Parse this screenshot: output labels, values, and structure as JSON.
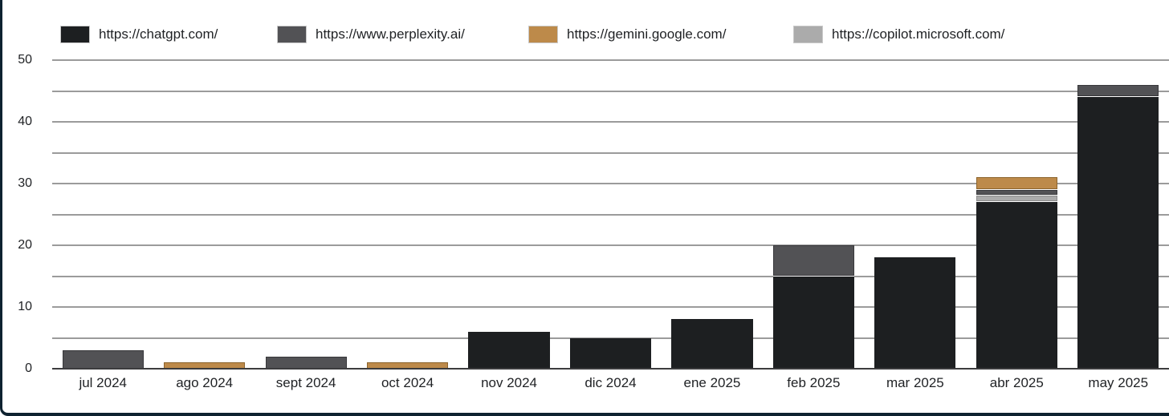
{
  "frame": {
    "border_color": "#0e2230"
  },
  "axis": {
    "grid_color": "#9b9b9b",
    "baseline_color": "#3c3c3e",
    "text_color": "#1f2124"
  },
  "chart_data": {
    "type": "bar",
    "stacked": true,
    "title": "",
    "xlabel": "",
    "ylabel": "",
    "ylim": [
      0,
      50
    ],
    "y_ticks_labeled": [
      0,
      10,
      20,
      30,
      40,
      50
    ],
    "gridline_step": 5,
    "grid": true,
    "legend_position": "top",
    "categories": [
      "jul 2024",
      "ago 2024",
      "sept 2024",
      "oct 2024",
      "nov 2024",
      "dic 2024",
      "ene 2025",
      "feb 2025",
      "mar 2025",
      "abr 2025",
      "may 2025"
    ],
    "series": [
      {
        "name": "https://chatgpt.com/",
        "color": "#1d1f21",
        "edge": "rgba(0,0,0,0)",
        "values": [
          0,
          0,
          0,
          0,
          6,
          5,
          8,
          15,
          18,
          27,
          44
        ]
      },
      {
        "name": "https://www.perplexity.ai/",
        "color": "#525255",
        "edge": "rgba(40,40,42,0.6)",
        "values": [
          3,
          0,
          2,
          0,
          0,
          0,
          0,
          5,
          0,
          1,
          2
        ]
      },
      {
        "name": "https://gemini.google.com/",
        "color": "#bd8a4a",
        "edge": "rgba(128,90,38,0.8)",
        "values": [
          0,
          1,
          0,
          1,
          0,
          0,
          0,
          0,
          0,
          2,
          0
        ]
      },
      {
        "name": "https://copilot.microsoft.com/",
        "color": "#ababab",
        "edge": "rgba(120,120,120,0.6)",
        "values": [
          0,
          0,
          0,
          0,
          0,
          0,
          0,
          0,
          0,
          1,
          0
        ]
      }
    ],
    "stack_order_bottom_to_top": [
      0,
      3,
      1,
      2
    ],
    "totals": [
      3,
      1,
      2,
      1,
      6,
      5,
      8,
      20,
      18,
      31,
      46
    ]
  },
  "legend_layout_lefts": [
    75,
    345,
    658,
    988
  ]
}
